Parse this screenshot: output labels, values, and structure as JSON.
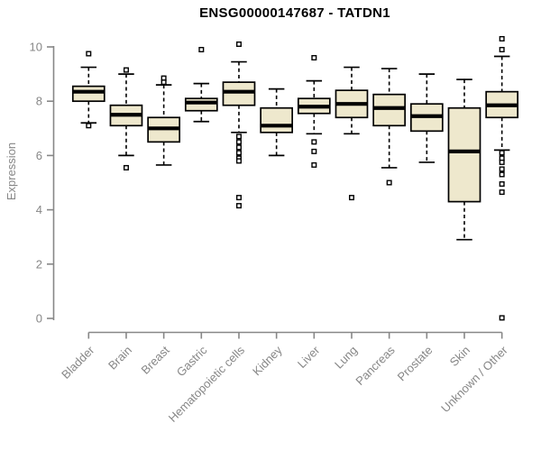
{
  "title": "ENSG00000147687 - TATDN1",
  "colors": {
    "box_fill": "#EEE8CD",
    "box_stroke": "#000000",
    "median": "#000000",
    "whisker": "#000000",
    "outlier_stroke": "#000000",
    "outlier_fill": "#FFFFFF",
    "axis": "#878787",
    "title_color": "#000000",
    "background": "#FFFFFF"
  },
  "chart_data": {
    "type": "boxplot",
    "title": "ENSG00000147687 - TATDN1",
    "xlabel": "",
    "ylabel": "Expression",
    "ylim": [
      0,
      10
    ],
    "yticks": [
      0,
      2,
      4,
      6,
      8,
      10
    ],
    "grid": false,
    "legend": false,
    "categories": [
      "Bladder",
      "Brain",
      "Breast",
      "Gastric",
      "Hematopoietic cells",
      "Kidney",
      "Liver",
      "Lung",
      "Pancreas",
      "Prostate",
      "Skin",
      "Unknown / Other"
    ],
    "series": [
      {
        "name": "Bladder",
        "median": 8.35,
        "q1": 8.0,
        "q3": 8.55,
        "whisker_low": 7.2,
        "whisker_high": 9.25,
        "outliers": [
          9.75,
          7.1
        ]
      },
      {
        "name": "Brain",
        "median": 7.5,
        "q1": 7.1,
        "q3": 7.85,
        "whisker_low": 6.0,
        "whisker_high": 9.0,
        "outliers": [
          9.15,
          5.55
        ]
      },
      {
        "name": "Breast",
        "median": 7.0,
        "q1": 6.5,
        "q3": 7.4,
        "whisker_low": 5.65,
        "whisker_high": 8.6,
        "outliers": [
          8.85,
          8.7
        ]
      },
      {
        "name": "Gastric",
        "median": 7.95,
        "q1": 7.65,
        "q3": 8.1,
        "whisker_low": 7.25,
        "whisker_high": 8.65,
        "outliers": [
          9.9
        ]
      },
      {
        "name": "Hematopoietic cells",
        "median": 8.35,
        "q1": 7.85,
        "q3": 8.7,
        "whisker_low": 6.85,
        "whisker_high": 9.45,
        "outliers": [
          10.1,
          6.7,
          6.5,
          6.3,
          6.1,
          5.9,
          5.8,
          4.45,
          4.15
        ]
      },
      {
        "name": "Kidney",
        "median": 7.1,
        "q1": 6.85,
        "q3": 7.75,
        "whisker_low": 6.0,
        "whisker_high": 8.45,
        "outliers": []
      },
      {
        "name": "Liver",
        "median": 7.8,
        "q1": 7.55,
        "q3": 8.1,
        "whisker_low": 6.8,
        "whisker_high": 8.75,
        "outliers": [
          9.6,
          6.5,
          6.15,
          5.65
        ]
      },
      {
        "name": "Lung",
        "median": 7.9,
        "q1": 7.4,
        "q3": 8.4,
        "whisker_low": 6.8,
        "whisker_high": 9.25,
        "outliers": [
          4.45
        ]
      },
      {
        "name": "Pancreas",
        "median": 7.75,
        "q1": 7.1,
        "q3": 8.25,
        "whisker_low": 5.55,
        "whisker_high": 9.2,
        "outliers": [
          5.0
        ]
      },
      {
        "name": "Prostate",
        "median": 7.45,
        "q1": 6.9,
        "q3": 7.9,
        "whisker_low": 5.75,
        "whisker_high": 9.0,
        "outliers": []
      },
      {
        "name": "Skin",
        "median": 6.15,
        "q1": 4.3,
        "q3": 7.75,
        "whisker_low": 2.9,
        "whisker_high": 8.8,
        "outliers": []
      },
      {
        "name": "Unknown / Other",
        "median": 7.85,
        "q1": 7.4,
        "q3": 8.35,
        "whisker_low": 6.2,
        "whisker_high": 9.65,
        "outliers": [
          10.3,
          9.9,
          6.1,
          5.9,
          5.75,
          5.5,
          5.3,
          4.95,
          4.65,
          0.02
        ]
      }
    ]
  }
}
